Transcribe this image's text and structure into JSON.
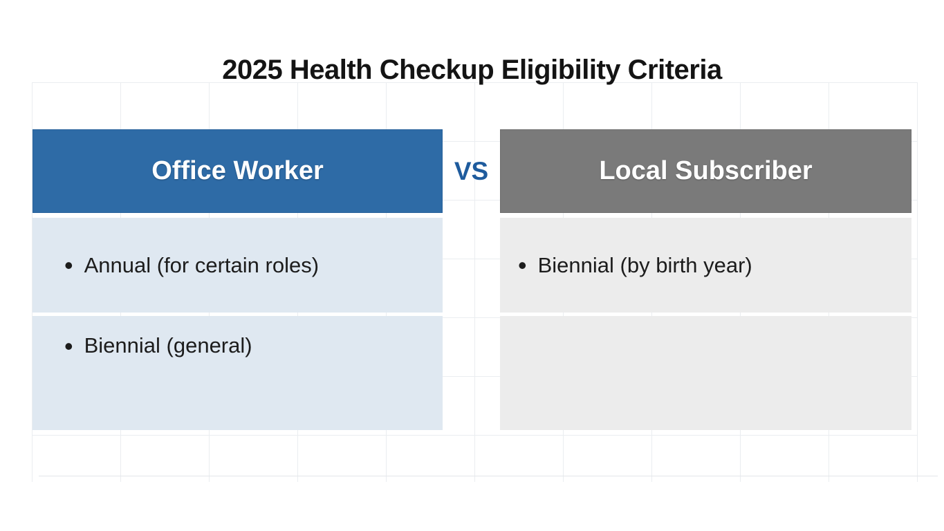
{
  "title": "2025 Health Checkup Eligibility Criteria",
  "vs_label": "VS",
  "bullet_glyph": "•",
  "columns": [
    {
      "header": "Office Worker",
      "items": [
        "Annual (for certain roles)",
        "Biennial (general)"
      ]
    },
    {
      "header": "Local Subscriber",
      "items": [
        "Biennial (by birth year)"
      ]
    }
  ],
  "colors": {
    "office_header_bg": "#2e6ba6",
    "subscriber_header_bg": "#7a7a7a",
    "office_body_bg": "#dfe8f1",
    "subscriber_body_bg": "#ececec",
    "vs_text": "#1e5b9d",
    "title_text": "#141414",
    "body_text": "#1c1c1c"
  }
}
